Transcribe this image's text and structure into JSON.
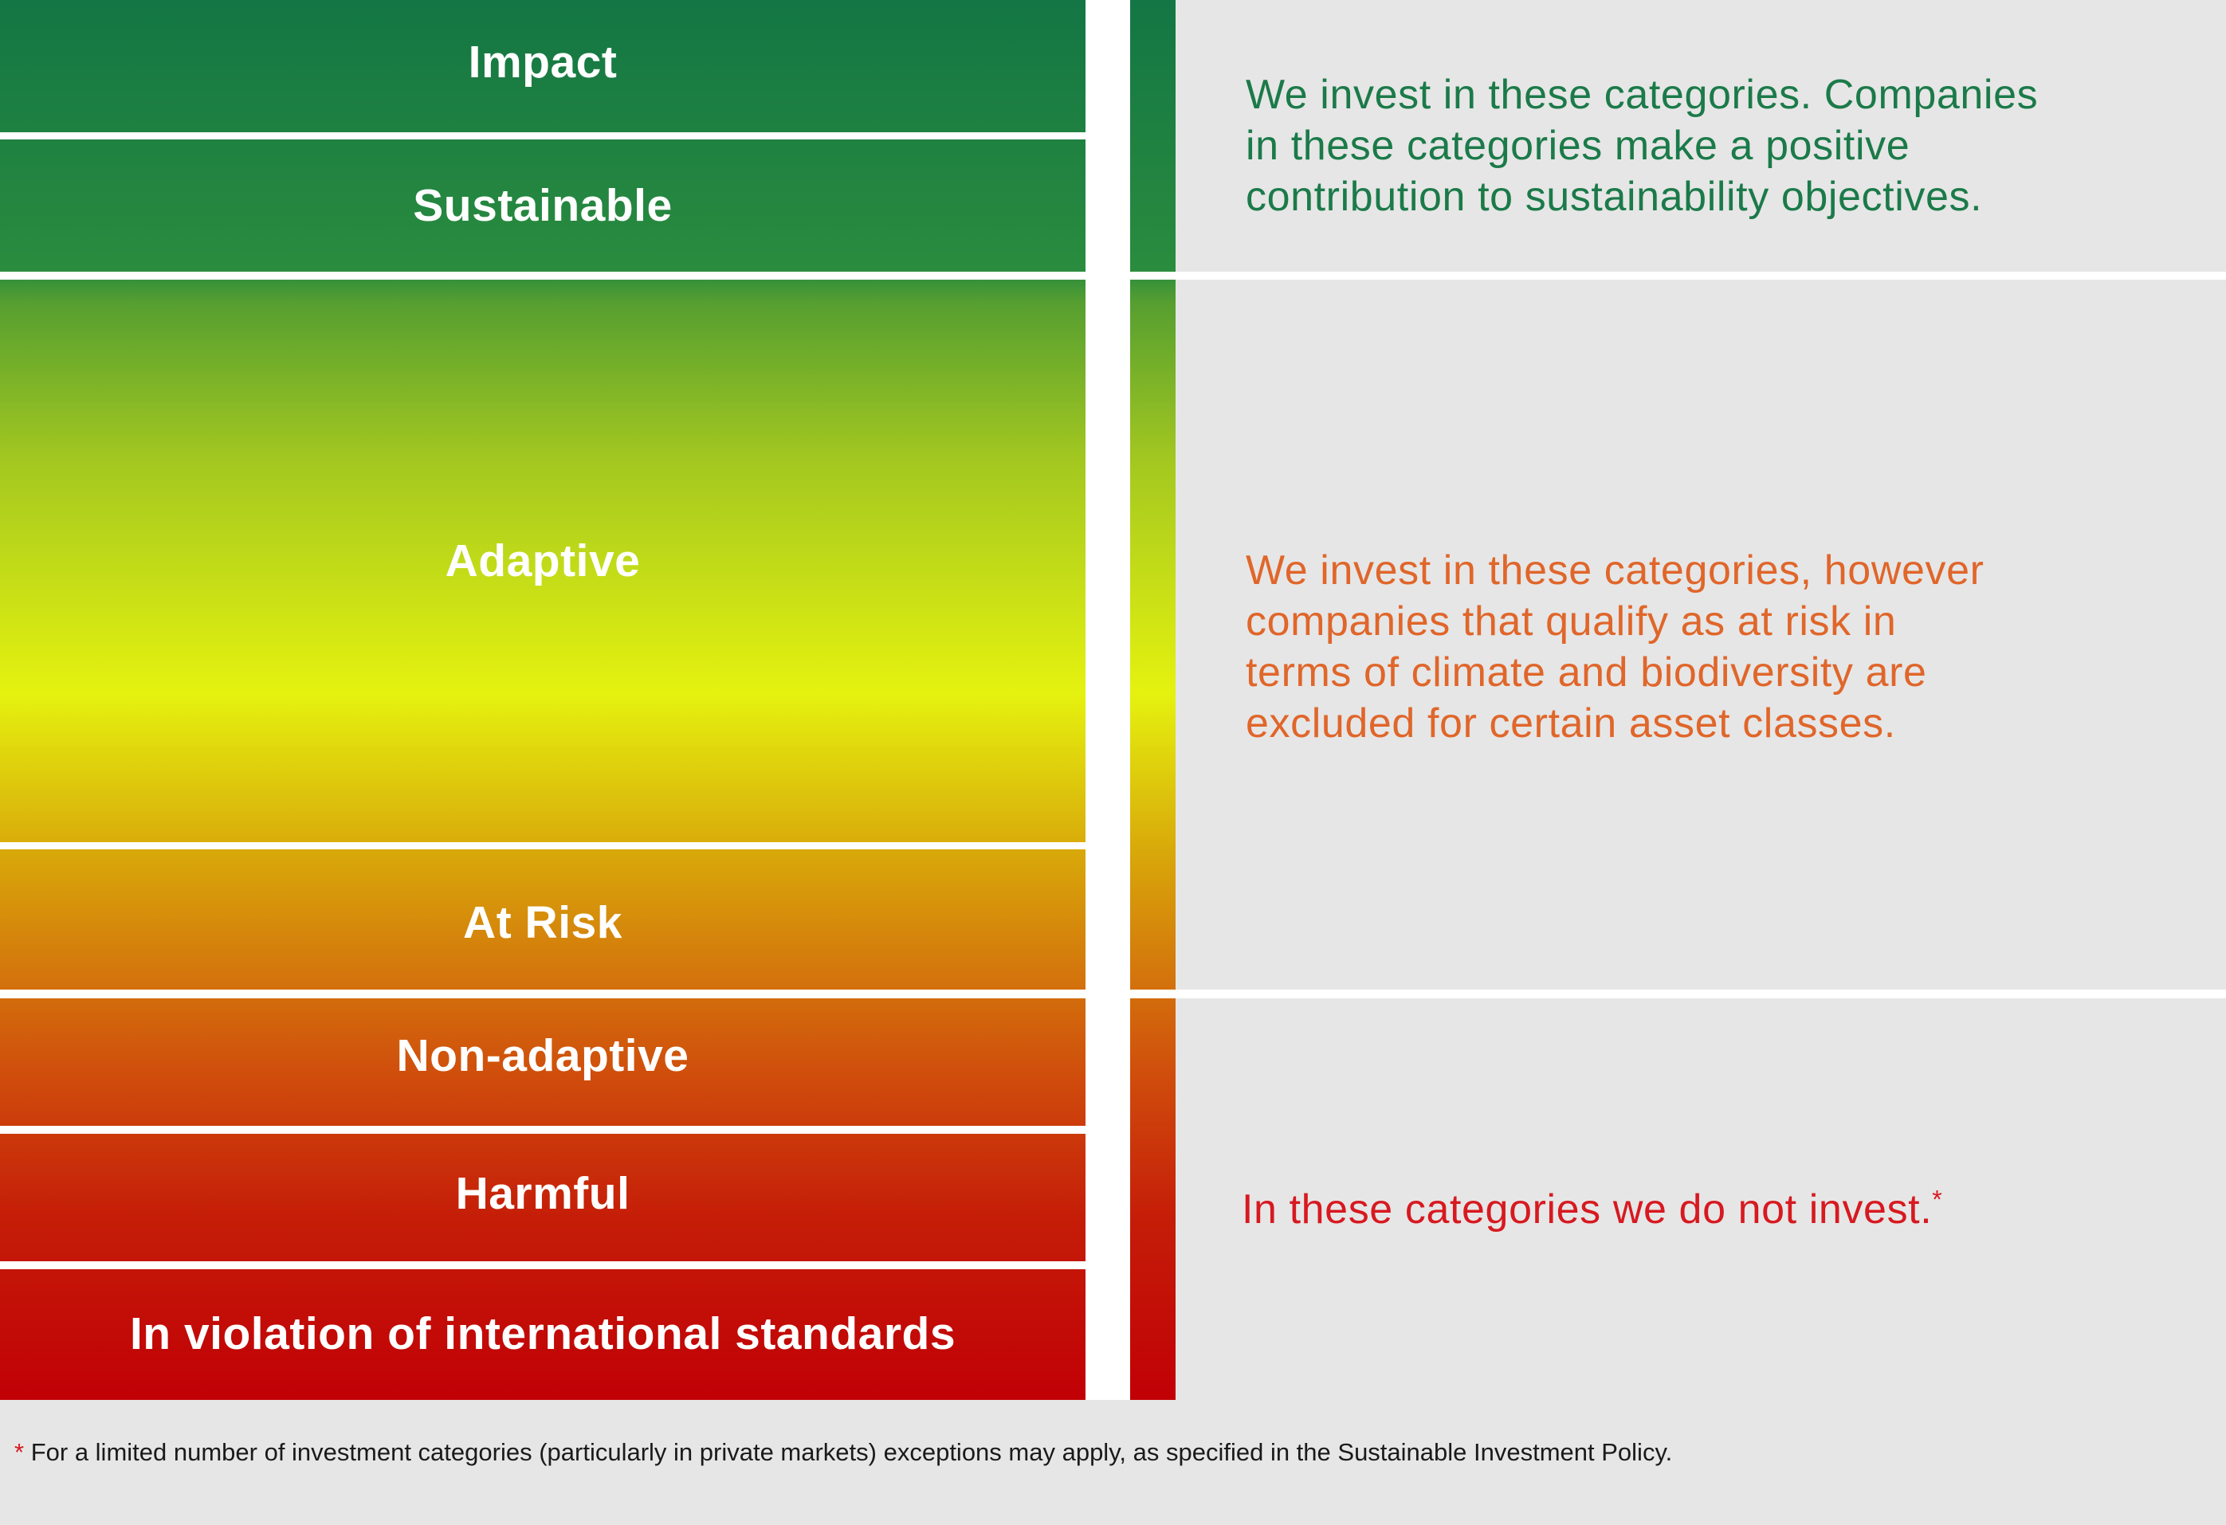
{
  "categories": [
    {
      "label": "Impact"
    },
    {
      "label": "Sustainable"
    },
    {
      "label": "Adaptive"
    },
    {
      "label": "At Risk"
    },
    {
      "label": "Non-adaptive"
    },
    {
      "label": "Harmful"
    },
    {
      "label": "In violation of international standards"
    }
  ],
  "groups": [
    {
      "text": "We invest in these categories. Companies in these categories make a positive contribution to sustainability objectives.",
      "line1": "We invest in these categories. Companies",
      "line2": "in these categories make a positive",
      "line3": "contribution to sustainability objectives.",
      "color": "#1b7a49"
    },
    {
      "text": "We invest in these categories, however companies that qualify as at risk in terms of climate and biodiversity are excluded for certain asset classes.",
      "line1": "We invest in these categories, however",
      "line2": "companies that qualify as at risk in",
      "line3": "terms of climate and biodiversity are",
      "line4": "excluded for certain asset classes.",
      "color": "#e0662a"
    },
    {
      "text": "In these categories we do not invest.",
      "asterisk": "*",
      "color": "#d71920"
    }
  ],
  "footnote": {
    "marker": "*",
    "text": "For a limited number of investment categories (particularly in private markets) exceptions may apply, as specified in the Sustainable Investment Policy."
  },
  "colors": {
    "green": "#137644",
    "yellow": "#e5f20f",
    "orange": "#d3700c",
    "red": "#c10006",
    "panel_bg": "#e6e6e6"
  }
}
